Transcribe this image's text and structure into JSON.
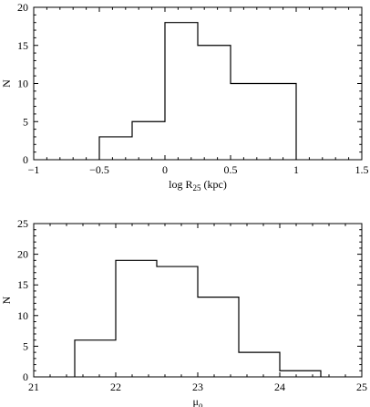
{
  "chart_data": [
    {
      "type": "histogram",
      "xlabel_main": "log R",
      "xlabel_sub": "25",
      "xlabel_suffix": " (kpc)",
      "ylabel": "N",
      "xlim": [
        -1,
        1.5
      ],
      "ylim": [
        0,
        20
      ],
      "xticks": [
        -1,
        -0.5,
        0,
        0.5,
        1,
        1.5
      ],
      "xtick_labels": [
        "−1",
        "−0.5",
        "0",
        "0.5",
        "1",
        "1.5"
      ],
      "yticks": [
        0,
        5,
        10,
        15,
        20
      ],
      "ytick_labels": [
        "0",
        "5",
        "10",
        "15",
        "20"
      ],
      "bin_edges": [
        -0.5,
        -0.25,
        0,
        0.25,
        0.5,
        0.75,
        1.0
      ],
      "counts": [
        3,
        5,
        18,
        15,
        10,
        10
      ]
    },
    {
      "type": "histogram",
      "xlabel_main": "μ",
      "xlabel_sub": "o",
      "xlabel_suffix": "",
      "ylabel": "N",
      "xlim": [
        21,
        25
      ],
      "ylim": [
        0,
        25
      ],
      "xticks": [
        21,
        22,
        23,
        24,
        25
      ],
      "xtick_labels": [
        "21",
        "22",
        "23",
        "24",
        "25"
      ],
      "yticks": [
        0,
        5,
        10,
        15,
        20,
        25
      ],
      "ytick_labels": [
        "0",
        "5",
        "10",
        "15",
        "20",
        "25"
      ],
      "bin_edges": [
        21.5,
        22.0,
        22.5,
        23.0,
        23.5,
        24.0,
        24.5
      ],
      "counts": [
        6,
        19,
        18,
        13,
        4,
        1
      ]
    }
  ]
}
